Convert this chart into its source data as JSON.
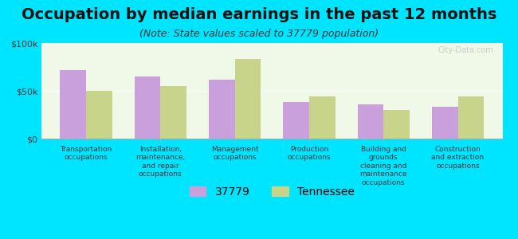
{
  "title": "Occupation by median earnings in the past 12 months",
  "subtitle": "(Note: State values scaled to 37779 population)",
  "categories": [
    "Transportation\noccupations",
    "Installation,\nmaintenance,\nand repair\noccupations",
    "Management\noccupations",
    "Production\noccupations",
    "Building and\ngrounds\ncleaning and\nmaintenance\noccupations",
    "Construction\nand extraction\noccupations"
  ],
  "values_city": [
    72000,
    65000,
    62000,
    38000,
    36000,
    33000
  ],
  "values_state": [
    50000,
    55000,
    83000,
    44000,
    30000,
    44000
  ],
  "color_city": "#c9a0dc",
  "color_state": "#c8d48a",
  "legend_labels": [
    "37779",
    "Tennessee"
  ],
  "background_color": "#00e5ff",
  "plot_bg_color": "#f0f8e8",
  "ylim": [
    0,
    100000
  ],
  "yticks": [
    0,
    50000,
    100000
  ],
  "ytick_labels": [
    "$0",
    "$50k",
    "$100k"
  ],
  "bar_width": 0.35,
  "title_fontsize": 14,
  "subtitle_fontsize": 9,
  "tick_fontsize": 8,
  "legend_fontsize": 10
}
